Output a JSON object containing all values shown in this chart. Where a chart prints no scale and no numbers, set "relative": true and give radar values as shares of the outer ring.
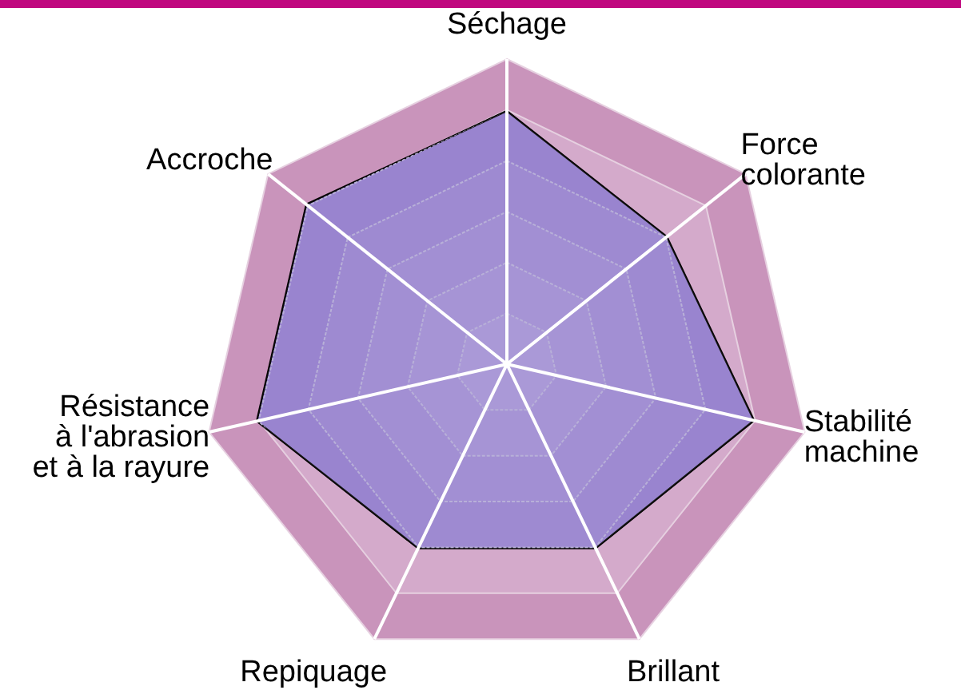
{
  "chart_data": {
    "type": "radar",
    "relative": true,
    "categories": [
      "Séchage",
      "Force\ncolorante",
      "Stabilité\nmachine",
      "Brillant",
      "Repiquage",
      "Résistance\nà l'abrasion\net à la rayure",
      "Accroche"
    ],
    "series": [
      {
        "color": "#8f78cb",
        "values": [
          0.83,
          0.67,
          0.83,
          0.67,
          0.67,
          0.84,
          0.84
        ]
      }
    ]
  }
}
